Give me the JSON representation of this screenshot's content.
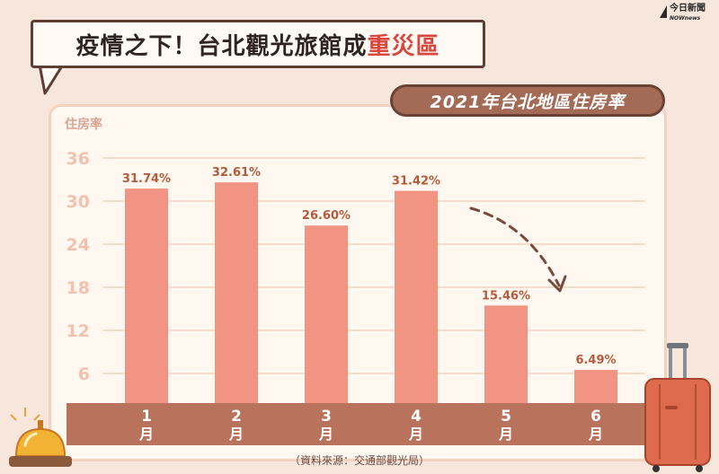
{
  "headline": {
    "prefix": "疫情之下！台北觀光旅館成",
    "accent": "重災區"
  },
  "brand": {
    "name": "今日新聞",
    "en": "NOWnews"
  },
  "subtitle": "2021年台北地區住房率",
  "footnote": "（資料來源：交通部觀光局）",
  "colors": {
    "bar": "#f29483",
    "axis_band": "#b9735c",
    "label": "#b65a3c",
    "tick": "#f3c2ae",
    "grid": "#f6dccd",
    "arrow": "#7a4b3d"
  },
  "chart_data": {
    "type": "bar",
    "title": "2021年台北地區住房率",
    "ylabel": "住房率",
    "xlabel": "",
    "categories": [
      "1月",
      "2月",
      "3月",
      "4月",
      "5月",
      "6月"
    ],
    "category_nums": [
      "1",
      "2",
      "3",
      "4",
      "5",
      "6"
    ],
    "category_unit": "月",
    "values": [
      31.74,
      32.61,
      26.6,
      31.42,
      15.46,
      6.49
    ],
    "value_labels": [
      "31.74%",
      "32.61%",
      "26.60%",
      "31.42%",
      "15.46%",
      "6.49%"
    ],
    "yticks": [
      6,
      12,
      18,
      24,
      30,
      36
    ],
    "ylim": [
      0,
      36
    ],
    "grid": true,
    "legend": "none",
    "annotation": "downward trend arrow from April to June"
  }
}
